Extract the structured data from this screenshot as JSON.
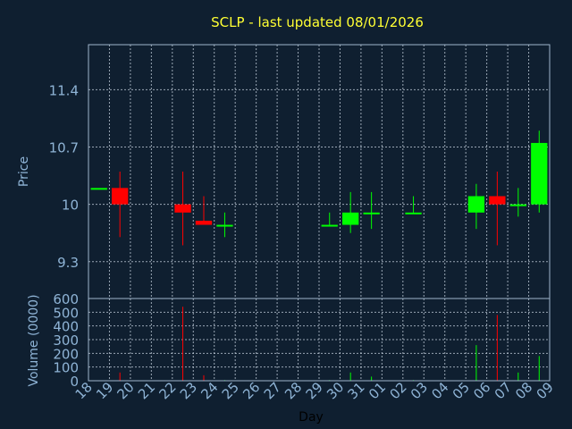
{
  "chart_data": {
    "type": "candlestick",
    "title": "SCLP - last updated 08/01/2026",
    "xlabel": "Day",
    "ylabel": "Price",
    "volume_label": "Volume (0000)",
    "x_tick_labels": [
      "18",
      "19",
      "20",
      "21",
      "22",
      "23",
      "24",
      "25",
      "26",
      "27",
      "28",
      "29",
      "30",
      "31",
      "01",
      "02",
      "03",
      "04",
      "05",
      "06",
      "07",
      "08",
      "09"
    ],
    "price_ticks": [
      9.3,
      10,
      10.7,
      11.4
    ],
    "price_tick_labels": [
      "9.3",
      "10",
      "10.7",
      "11.4"
    ],
    "price_range": [
      8.85,
      11.95
    ],
    "volume_ticks": [
      0,
      100,
      200,
      300,
      400,
      500,
      600
    ],
    "volume_tick_labels": [
      "0",
      "100",
      "200",
      "300",
      "400",
      "500",
      "600"
    ],
    "volume_range": [
      0,
      600
    ],
    "colors": {
      "up": "#00ff00",
      "down": "#ff0000",
      "background": "#0f1f30",
      "title": "#ffff33",
      "axis_text": "#8fb4d6"
    },
    "candles": [
      {
        "day": 0,
        "open": 10.2,
        "high": 10.2,
        "low": 10.2,
        "close": 10.2,
        "volume": 0
      },
      {
        "day": 1,
        "open": 10.2,
        "high": 10.4,
        "low": 9.6,
        "close": 10.0,
        "volume": 60
      },
      {
        "day": 4,
        "open": 10.0,
        "high": 10.4,
        "low": 9.5,
        "close": 9.9,
        "volume": 540
      },
      {
        "day": 5,
        "open": 9.8,
        "high": 10.1,
        "low": 9.75,
        "close": 9.75,
        "volume": 40
      },
      {
        "day": 6,
        "open": 9.75,
        "high": 9.9,
        "low": 9.6,
        "close": 9.75,
        "volume": 5
      },
      {
        "day": 11,
        "open": 9.75,
        "high": 9.9,
        "low": 9.75,
        "close": 9.75,
        "volume": 5
      },
      {
        "day": 12,
        "open": 9.75,
        "high": 10.15,
        "low": 9.65,
        "close": 9.9,
        "volume": 60
      },
      {
        "day": 13,
        "open": 9.9,
        "high": 10.15,
        "low": 9.7,
        "close": 9.9,
        "volume": 30
      },
      {
        "day": 15,
        "open": 9.9,
        "high": 10.1,
        "low": 9.9,
        "close": 9.9,
        "volume": 5
      },
      {
        "day": 18,
        "open": 9.9,
        "high": 10.25,
        "low": 9.7,
        "close": 10.1,
        "volume": 260
      },
      {
        "day": 19,
        "open": 10.1,
        "high": 10.4,
        "low": 9.5,
        "close": 10.0,
        "volume": 480
      },
      {
        "day": 20,
        "open": 10.0,
        "high": 10.2,
        "low": 9.85,
        "close": 10.0,
        "volume": 60
      },
      {
        "day": 21,
        "open": 10.0,
        "high": 10.9,
        "low": 9.9,
        "close": 10.75,
        "volume": 180
      }
    ]
  }
}
